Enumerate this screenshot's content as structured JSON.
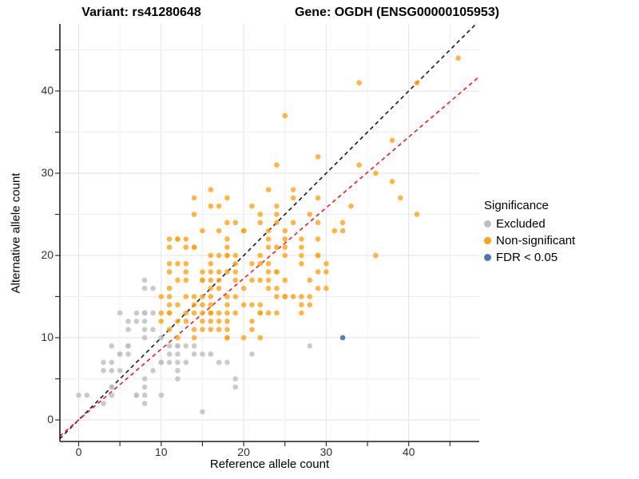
{
  "titles": {
    "variant": "Variant: rs41280648",
    "gene": "Gene: OGDH (ENSG00000105953)"
  },
  "axes": {
    "x_label": "Reference allele count",
    "y_label": "Alternative allele count",
    "x_ticks": [
      0,
      10,
      20,
      30,
      40
    ],
    "y_ticks": [
      0,
      10,
      20,
      30,
      40
    ],
    "minor_tick_step": 5
  },
  "legend": {
    "title": "Significance",
    "items": [
      {
        "label": "Excluded",
        "color": "#BDBDBD"
      },
      {
        "label": "Non-significant",
        "color": "#FFA115"
      },
      {
        "label": "FDR < 0.05",
        "color": "#4878B4"
      }
    ]
  },
  "chart_data": {
    "type": "scatter",
    "title": "Variant: rs41280648 — Gene: OGDH (ENSG00000105953)",
    "xlabel": "Reference allele count",
    "ylabel": "Alternative allele count",
    "xlim": [
      -2.3,
      48.6
    ],
    "ylim": [
      -2.6,
      48.2
    ],
    "grid": "major+minor",
    "legend_position": "right",
    "lines": [
      {
        "name": "identity y=x",
        "style": "dashed",
        "color": "#1A1A1A",
        "slope": 1,
        "intercept": 0
      },
      {
        "name": "expected allele ratio",
        "style": "dashed",
        "color": "#E62020",
        "slope": 0.86,
        "intercept": 0
      }
    ],
    "series": [
      {
        "name": "Excluded",
        "color": "#BDBDBD",
        "opacity": 0.8,
        "points": [
          [
            8,
            17
          ],
          [
            8,
            16
          ],
          [
            9,
            16
          ],
          [
            5,
            13
          ],
          [
            7,
            13
          ],
          [
            8,
            13
          ],
          [
            9,
            13
          ],
          [
            6,
            12
          ],
          [
            7,
            12
          ],
          [
            8,
            12
          ],
          [
            6,
            11
          ],
          [
            8,
            11
          ],
          [
            9,
            11
          ],
          [
            8,
            10
          ],
          [
            10,
            10
          ],
          [
            4,
            9
          ],
          [
            6,
            9
          ],
          [
            11,
            9
          ],
          [
            12,
            9
          ],
          [
            13,
            9
          ],
          [
            14,
            9
          ],
          [
            28,
            9
          ],
          [
            5,
            8
          ],
          [
            6,
            8
          ],
          [
            11,
            8
          ],
          [
            12,
            8
          ],
          [
            14,
            8
          ],
          [
            15,
            8
          ],
          [
            16,
            8
          ],
          [
            21,
            8
          ],
          [
            3,
            7
          ],
          [
            4,
            7
          ],
          [
            10,
            7
          ],
          [
            11,
            7
          ],
          [
            12,
            7
          ],
          [
            13,
            7
          ],
          [
            17,
            7
          ],
          [
            18,
            7
          ],
          [
            3,
            6
          ],
          [
            4,
            6
          ],
          [
            5,
            6
          ],
          [
            9,
            6
          ],
          [
            12,
            6
          ],
          [
            8,
            5
          ],
          [
            12,
            5
          ],
          [
            19,
            5
          ],
          [
            4,
            4
          ],
          [
            8,
            4
          ],
          [
            19,
            4
          ],
          [
            0,
            3
          ],
          [
            1,
            3
          ],
          [
            4,
            3
          ],
          [
            7,
            3
          ],
          [
            8,
            3
          ],
          [
            10,
            3
          ],
          [
            3,
            2
          ],
          [
            8,
            2
          ],
          [
            15,
            1
          ],
          [
            8,
            13
          ],
          [
            6,
            9
          ],
          [
            4,
            4
          ],
          [
            10,
            7
          ],
          [
            7,
            3
          ],
          [
            12,
            9
          ],
          [
            5,
            8
          ]
        ]
      },
      {
        "name": "Non-significant",
        "color": "#FFA115",
        "opacity": 0.78,
        "points": [
          [
            46,
            44
          ],
          [
            34,
            41
          ],
          [
            41,
            41
          ],
          [
            25,
            37
          ],
          [
            38,
            34
          ],
          [
            29,
            32
          ],
          [
            24,
            31
          ],
          [
            34,
            31
          ],
          [
            36,
            30
          ],
          [
            38,
            29
          ],
          [
            16,
            28
          ],
          [
            23,
            28
          ],
          [
            26,
            28
          ],
          [
            14,
            27
          ],
          [
            18,
            27
          ],
          [
            26,
            27
          ],
          [
            29,
            27
          ],
          [
            39,
            27
          ],
          [
            16,
            26
          ],
          [
            17,
            26
          ],
          [
            21,
            26
          ],
          [
            24,
            26
          ],
          [
            33,
            26
          ],
          [
            14,
            25
          ],
          [
            22,
            25
          ],
          [
            24,
            25
          ],
          [
            28,
            25
          ],
          [
            41,
            25
          ],
          [
            18,
            24
          ],
          [
            19,
            24
          ],
          [
            22,
            24
          ],
          [
            24,
            24
          ],
          [
            26,
            24
          ],
          [
            29,
            24
          ],
          [
            32,
            24
          ],
          [
            15,
            23
          ],
          [
            17,
            23
          ],
          [
            20,
            23
          ],
          [
            23,
            23
          ],
          [
            25,
            23
          ],
          [
            31,
            23
          ],
          [
            32,
            23
          ],
          [
            11,
            22
          ],
          [
            12,
            22
          ],
          [
            13,
            22
          ],
          [
            18,
            22
          ],
          [
            23,
            22
          ],
          [
            25,
            22
          ],
          [
            27,
            22
          ],
          [
            29,
            22
          ],
          [
            11,
            21
          ],
          [
            13,
            21
          ],
          [
            14,
            21
          ],
          [
            18,
            21
          ],
          [
            23,
            21
          ],
          [
            24,
            21
          ],
          [
            25,
            21
          ],
          [
            27,
            21
          ],
          [
            16,
            20
          ],
          [
            17,
            20
          ],
          [
            18,
            20
          ],
          [
            19,
            20
          ],
          [
            22,
            20
          ],
          [
            25,
            20
          ],
          [
            27,
            20
          ],
          [
            29,
            20
          ],
          [
            36,
            20
          ],
          [
            11,
            19
          ],
          [
            12,
            19
          ],
          [
            13,
            19
          ],
          [
            16,
            19
          ],
          [
            19,
            19
          ],
          [
            21,
            19
          ],
          [
            22,
            19
          ],
          [
            23,
            19
          ],
          [
            27,
            19
          ],
          [
            30,
            19
          ],
          [
            11,
            18
          ],
          [
            13,
            18
          ],
          [
            15,
            18
          ],
          [
            16,
            18
          ],
          [
            17,
            18
          ],
          [
            18,
            18
          ],
          [
            19,
            18
          ],
          [
            23,
            18
          ],
          [
            24,
            18
          ],
          [
            29,
            18
          ],
          [
            30,
            18
          ],
          [
            12,
            17
          ],
          [
            13,
            17
          ],
          [
            15,
            17
          ],
          [
            16,
            17
          ],
          [
            17,
            17
          ],
          [
            19,
            17
          ],
          [
            21,
            17
          ],
          [
            22,
            17
          ],
          [
            23,
            17
          ],
          [
            25,
            17
          ],
          [
            28,
            17
          ],
          [
            11,
            16
          ],
          [
            16,
            16
          ],
          [
            17,
            16
          ],
          [
            20,
            16
          ],
          [
            23,
            16
          ],
          [
            24,
            16
          ],
          [
            29,
            16
          ],
          [
            30,
            16
          ],
          [
            10,
            15
          ],
          [
            11,
            15
          ],
          [
            13,
            15
          ],
          [
            14,
            15
          ],
          [
            15,
            15
          ],
          [
            16,
            15
          ],
          [
            18,
            15
          ],
          [
            19,
            15
          ],
          [
            24,
            15
          ],
          [
            25,
            15
          ],
          [
            26,
            15
          ],
          [
            27,
            15
          ],
          [
            28,
            15
          ],
          [
            11,
            14
          ],
          [
            12,
            14
          ],
          [
            14,
            14
          ],
          [
            15,
            14
          ],
          [
            16,
            14
          ],
          [
            18,
            14
          ],
          [
            20,
            14
          ],
          [
            21,
            14
          ],
          [
            22,
            14
          ],
          [
            27,
            14
          ],
          [
            28,
            14
          ],
          [
            10,
            13
          ],
          [
            11,
            13
          ],
          [
            13,
            13
          ],
          [
            14,
            13
          ],
          [
            15,
            13
          ],
          [
            16,
            13
          ],
          [
            17,
            13
          ],
          [
            18,
            13
          ],
          [
            19,
            13
          ],
          [
            22,
            13
          ],
          [
            23,
            13
          ],
          [
            24,
            13
          ],
          [
            27,
            13
          ],
          [
            10,
            12
          ],
          [
            12,
            12
          ],
          [
            13,
            12
          ],
          [
            15,
            12
          ],
          [
            16,
            12
          ],
          [
            17,
            12
          ],
          [
            18,
            12
          ],
          [
            21,
            12
          ],
          [
            11,
            11
          ],
          [
            14,
            11
          ],
          [
            15,
            11
          ],
          [
            16,
            11
          ],
          [
            17,
            11
          ],
          [
            18,
            11
          ],
          [
            21,
            11
          ],
          [
            12,
            10
          ],
          [
            14,
            10
          ],
          [
            18,
            10
          ],
          [
            20,
            10
          ],
          [
            22,
            10
          ],
          [
            18,
            20
          ],
          [
            20,
            23
          ],
          [
            16,
            13
          ],
          [
            25,
            15
          ],
          [
            22,
            13
          ],
          [
            15,
            17
          ],
          [
            12,
            22
          ],
          [
            18,
            10
          ],
          [
            24,
            18
          ],
          [
            14,
            21
          ],
          [
            11,
            13
          ],
          [
            29,
            20
          ]
        ]
      },
      {
        "name": "FDR < 0.05",
        "color": "#4878B4",
        "opacity": 0.95,
        "points": [
          [
            32,
            10
          ]
        ]
      }
    ]
  }
}
